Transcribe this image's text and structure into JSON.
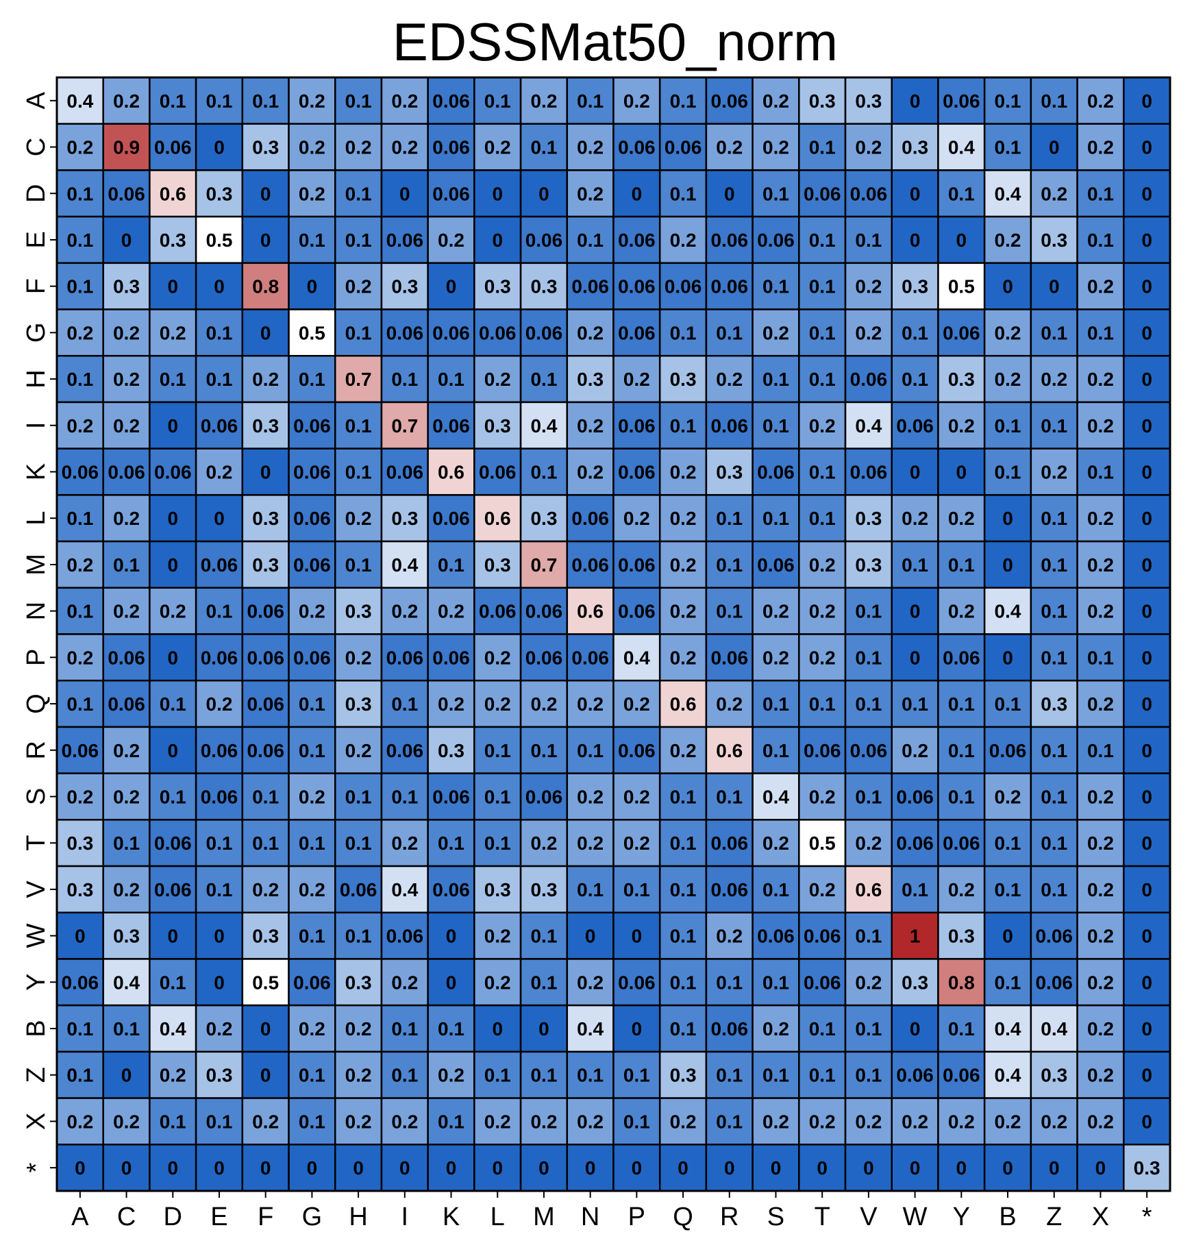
{
  "chart_data": {
    "type": "heatmap",
    "title": "EDSSMat50_norm",
    "xlabel": "",
    "ylabel": "",
    "x_labels": [
      "A",
      "C",
      "D",
      "E",
      "F",
      "G",
      "H",
      "I",
      "K",
      "L",
      "M",
      "N",
      "P",
      "Q",
      "R",
      "S",
      "T",
      "V",
      "W",
      "Y",
      "B",
      "Z",
      "X",
      "*"
    ],
    "y_labels": [
      "A",
      "C",
      "D",
      "E",
      "F",
      "G",
      "H",
      "I",
      "K",
      "L",
      "M",
      "N",
      "P",
      "Q",
      "R",
      "S",
      "T",
      "V",
      "W",
      "Y",
      "B",
      "Z",
      "X",
      "*"
    ],
    "values": [
      [
        0.4,
        0.2,
        0.1,
        0.1,
        0.1,
        0.2,
        0.1,
        0.2,
        0.06,
        0.1,
        0.2,
        0.1,
        0.2,
        0.1,
        0.06,
        0.2,
        0.3,
        0.3,
        0,
        0.06,
        0.1,
        0.1,
        0.2,
        0
      ],
      [
        0.2,
        0.9,
        0.06,
        0,
        0.3,
        0.2,
        0.2,
        0.2,
        0.06,
        0.2,
        0.1,
        0.2,
        0.06,
        0.06,
        0.2,
        0.2,
        0.1,
        0.2,
        0.3,
        0.4,
        0.1,
        0,
        0.2,
        0
      ],
      [
        0.1,
        0.06,
        0.6,
        0.3,
        0,
        0.2,
        0.1,
        0,
        0.06,
        0,
        0,
        0.2,
        0,
        0.1,
        0,
        0.1,
        0.06,
        0.06,
        0,
        0.1,
        0.4,
        0.2,
        0.1,
        0
      ],
      [
        0.1,
        0,
        0.3,
        0.5,
        0,
        0.1,
        0.1,
        0.06,
        0.2,
        0,
        0.06,
        0.1,
        0.06,
        0.2,
        0.06,
        0.06,
        0.1,
        0.1,
        0,
        0,
        0.2,
        0.3,
        0.1,
        0
      ],
      [
        0.1,
        0.3,
        0,
        0,
        0.8,
        0,
        0.2,
        0.3,
        0,
        0.3,
        0.3,
        0.06,
        0.06,
        0.06,
        0.06,
        0.1,
        0.1,
        0.2,
        0.3,
        0.5,
        0,
        0,
        0.2,
        0
      ],
      [
        0.2,
        0.2,
        0.2,
        0.1,
        0,
        0.5,
        0.1,
        0.06,
        0.06,
        0.06,
        0.06,
        0.2,
        0.06,
        0.1,
        0.1,
        0.2,
        0.1,
        0.2,
        0.1,
        0.06,
        0.2,
        0.1,
        0.1,
        0
      ],
      [
        0.1,
        0.2,
        0.1,
        0.1,
        0.2,
        0.1,
        0.7,
        0.1,
        0.1,
        0.2,
        0.1,
        0.3,
        0.2,
        0.3,
        0.2,
        0.1,
        0.1,
        0.06,
        0.1,
        0.3,
        0.2,
        0.2,
        0.2,
        0
      ],
      [
        0.2,
        0.2,
        0,
        0.06,
        0.3,
        0.06,
        0.1,
        0.7,
        0.06,
        0.3,
        0.4,
        0.2,
        0.06,
        0.1,
        0.06,
        0.1,
        0.2,
        0.4,
        0.06,
        0.2,
        0.1,
        0.1,
        0.2,
        0
      ],
      [
        0.06,
        0.06,
        0.06,
        0.2,
        0,
        0.06,
        0.1,
        0.06,
        0.6,
        0.06,
        0.1,
        0.2,
        0.06,
        0.2,
        0.3,
        0.06,
        0.1,
        0.06,
        0,
        0,
        0.1,
        0.2,
        0.1,
        0
      ],
      [
        0.1,
        0.2,
        0,
        0,
        0.3,
        0.06,
        0.2,
        0.3,
        0.06,
        0.6,
        0.3,
        0.06,
        0.2,
        0.2,
        0.1,
        0.1,
        0.1,
        0.3,
        0.2,
        0.2,
        0,
        0.1,
        0.2,
        0
      ],
      [
        0.2,
        0.1,
        0,
        0.06,
        0.3,
        0.06,
        0.1,
        0.4,
        0.1,
        0.3,
        0.7,
        0.06,
        0.06,
        0.2,
        0.1,
        0.06,
        0.2,
        0.3,
        0.1,
        0.1,
        0,
        0.1,
        0.2,
        0
      ],
      [
        0.1,
        0.2,
        0.2,
        0.1,
        0.06,
        0.2,
        0.3,
        0.2,
        0.2,
        0.06,
        0.06,
        0.6,
        0.06,
        0.2,
        0.1,
        0.2,
        0.2,
        0.1,
        0,
        0.2,
        0.4,
        0.1,
        0.2,
        0
      ],
      [
        0.2,
        0.06,
        0,
        0.06,
        0.06,
        0.06,
        0.2,
        0.06,
        0.06,
        0.2,
        0.06,
        0.06,
        0.4,
        0.2,
        0.06,
        0.2,
        0.2,
        0.1,
        0,
        0.06,
        0,
        0.1,
        0.1,
        0
      ],
      [
        0.1,
        0.06,
        0.1,
        0.2,
        0.06,
        0.1,
        0.3,
        0.1,
        0.2,
        0.2,
        0.2,
        0.2,
        0.2,
        0.6,
        0.2,
        0.1,
        0.1,
        0.1,
        0.1,
        0.1,
        0.1,
        0.3,
        0.2,
        0
      ],
      [
        0.06,
        0.2,
        0,
        0.06,
        0.06,
        0.1,
        0.2,
        0.06,
        0.3,
        0.1,
        0.1,
        0.1,
        0.06,
        0.2,
        0.6,
        0.1,
        0.06,
        0.06,
        0.2,
        0.1,
        0.06,
        0.1,
        0.1,
        0
      ],
      [
        0.2,
        0.2,
        0.1,
        0.06,
        0.1,
        0.2,
        0.1,
        0.1,
        0.06,
        0.1,
        0.06,
        0.2,
        0.2,
        0.1,
        0.1,
        0.4,
        0.2,
        0.1,
        0.06,
        0.1,
        0.2,
        0.1,
        0.2,
        0
      ],
      [
        0.3,
        0.1,
        0.06,
        0.1,
        0.1,
        0.1,
        0.1,
        0.2,
        0.1,
        0.1,
        0.2,
        0.2,
        0.2,
        0.1,
        0.06,
        0.2,
        0.5,
        0.2,
        0.06,
        0.06,
        0.1,
        0.1,
        0.2,
        0
      ],
      [
        0.3,
        0.2,
        0.06,
        0.1,
        0.2,
        0.2,
        0.06,
        0.4,
        0.06,
        0.3,
        0.3,
        0.1,
        0.1,
        0.1,
        0.06,
        0.1,
        0.2,
        0.6,
        0.1,
        0.2,
        0.1,
        0.1,
        0.2,
        0
      ],
      [
        0,
        0.3,
        0,
        0,
        0.3,
        0.1,
        0.1,
        0.06,
        0,
        0.2,
        0.1,
        0,
        0,
        0.1,
        0.2,
        0.06,
        0.06,
        0.1,
        1,
        0.3,
        0,
        0.06,
        0.2,
        0
      ],
      [
        0.06,
        0.4,
        0.1,
        0,
        0.5,
        0.06,
        0.3,
        0.2,
        0,
        0.2,
        0.1,
        0.2,
        0.06,
        0.1,
        0.1,
        0.1,
        0.06,
        0.2,
        0.3,
        0.8,
        0.1,
        0.06,
        0.2,
        0
      ],
      [
        0.1,
        0.1,
        0.4,
        0.2,
        0,
        0.2,
        0.2,
        0.1,
        0.1,
        0,
        0,
        0.4,
        0,
        0.1,
        0.06,
        0.2,
        0.1,
        0.1,
        0,
        0.1,
        0.4,
        0.4,
        0.2,
        0
      ],
      [
        0.1,
        0,
        0.2,
        0.3,
        0,
        0.1,
        0.2,
        0.1,
        0.2,
        0.1,
        0.1,
        0.1,
        0.1,
        0.3,
        0.1,
        0.1,
        0.1,
        0.1,
        0.06,
        0.06,
        0.4,
        0.3,
        0.2,
        0
      ],
      [
        0.2,
        0.2,
        0.1,
        0.1,
        0.2,
        0.1,
        0.2,
        0.2,
        0.1,
        0.2,
        0.2,
        0.2,
        0.1,
        0.2,
        0.1,
        0.2,
        0.2,
        0.2,
        0.2,
        0.2,
        0.2,
        0.2,
        0.2,
        0
      ],
      [
        0,
        0,
        0,
        0,
        0,
        0,
        0,
        0,
        0,
        0,
        0,
        0,
        0,
        0,
        0,
        0,
        0,
        0,
        0,
        0,
        0,
        0,
        0,
        0.3
      ]
    ],
    "value_range": [
      0,
      1
    ],
    "colormap": [
      "#2166c4",
      "#ffffff",
      "#b2282a"
    ],
    "grid": true,
    "legend": "none"
  }
}
